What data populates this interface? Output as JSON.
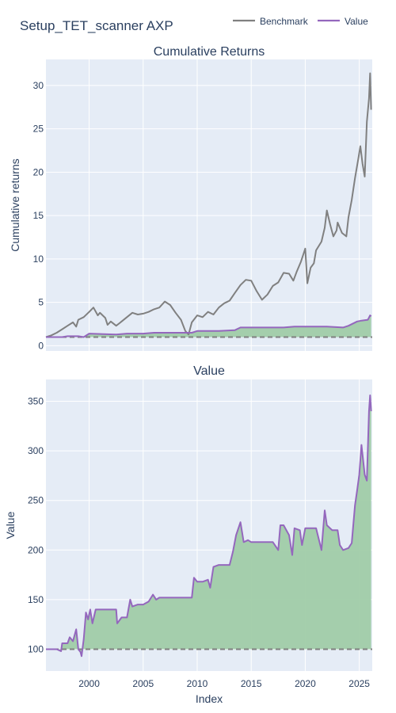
{
  "title": "Setup_TET_scanner AXP",
  "legend": {
    "position": "top-right",
    "items": [
      {
        "label": "Benchmark",
        "color": "#808080"
      },
      {
        "label": "Value",
        "color": "#9467bd"
      }
    ]
  },
  "chart_data": [
    {
      "type": "line",
      "title": "Cumulative Returns",
      "ylabel": "Cumulative returns",
      "xlabel": "",
      "xlim": [
        1996.0,
        2026.2
      ],
      "ylim": [
        -0.6,
        33.0
      ],
      "yticks": [
        0,
        5,
        10,
        15,
        20,
        25,
        30
      ],
      "grid": true,
      "baseline": 1,
      "fill_color": "#a0cca8",
      "series": [
        {
          "name": "Benchmark",
          "color": "#808080",
          "x": [
            1996.0,
            1996.5,
            1997.0,
            1997.5,
            1998.0,
            1998.5,
            1998.8,
            1999.0,
            1999.5,
            2000.0,
            2000.4,
            2000.8,
            2001.0,
            2001.5,
            2001.7,
            2002.0,
            2002.5,
            2002.8,
            2003.0,
            2003.5,
            2004.0,
            2004.5,
            2005.0,
            2005.5,
            2006.0,
            2006.5,
            2007.0,
            2007.5,
            2008.0,
            2008.5,
            2008.9,
            2009.2,
            2009.5,
            2010.0,
            2010.5,
            2011.0,
            2011.5,
            2012.0,
            2012.5,
            2013.0,
            2013.5,
            2014.0,
            2014.5,
            2015.0,
            2015.5,
            2016.0,
            2016.5,
            2017.0,
            2017.5,
            2018.0,
            2018.5,
            2018.9,
            2019.2,
            2019.6,
            2020.0,
            2020.2,
            2020.5,
            2020.8,
            2021.0,
            2021.5,
            2021.8,
            2022.0,
            2022.3,
            2022.6,
            2022.9,
            2023.0,
            2023.4,
            2023.8,
            2024.0,
            2024.3,
            2024.6,
            2024.9,
            2025.1,
            2025.3,
            2025.5,
            2025.7,
            2025.9,
            2026.0,
            2026.1
          ],
          "y": [
            1.0,
            1.2,
            1.5,
            1.9,
            2.3,
            2.7,
            2.2,
            3.0,
            3.3,
            3.9,
            4.4,
            3.5,
            3.8,
            3.2,
            2.4,
            2.8,
            2.3,
            2.6,
            2.8,
            3.3,
            3.8,
            3.6,
            3.7,
            3.9,
            4.2,
            4.4,
            5.1,
            4.7,
            3.8,
            3.0,
            1.7,
            1.3,
            2.7,
            3.5,
            3.3,
            3.9,
            3.6,
            4.4,
            4.9,
            5.2,
            6.1,
            7.0,
            7.6,
            7.5,
            6.3,
            5.3,
            5.9,
            6.9,
            7.3,
            8.4,
            8.3,
            7.5,
            8.5,
            9.7,
            11.2,
            7.2,
            9.0,
            9.5,
            11.0,
            12.0,
            13.6,
            15.6,
            14.0,
            12.6,
            13.3,
            14.2,
            13.0,
            12.6,
            14.8,
            16.8,
            19.3,
            21.5,
            23.0,
            21.0,
            19.5,
            25.8,
            28.5,
            31.4,
            27.2
          ]
        },
        {
          "name": "Value",
          "color": "#9467bd",
          "x": [
            1996.0,
            1997.5,
            1998.0,
            1999.0,
            1999.5,
            2000.0,
            2002.5,
            2003.5,
            2005.0,
            2006.0,
            2006.5,
            2009.5,
            2010.0,
            2012.0,
            2013.5,
            2014.0,
            2018.0,
            2019.0,
            2021.0,
            2022.0,
            2023.5,
            2024.0,
            2024.8,
            2025.2,
            2025.8,
            2026.0,
            2026.1
          ],
          "y": [
            1.0,
            1.0,
            1.1,
            1.1,
            1.0,
            1.4,
            1.3,
            1.4,
            1.4,
            1.5,
            1.5,
            1.5,
            1.7,
            1.7,
            1.8,
            2.1,
            2.1,
            2.2,
            2.2,
            2.2,
            2.1,
            2.3,
            2.8,
            2.9,
            3.0,
            3.5,
            3.4
          ]
        }
      ]
    },
    {
      "type": "area",
      "title": "Value",
      "ylabel": "Value",
      "xlabel": "Index",
      "xlim": [
        1996.0,
        2026.2
      ],
      "ylim": [
        78,
        372
      ],
      "yticks": [
        100,
        150,
        200,
        250,
        300,
        350
      ],
      "xticks": [
        2000,
        2005,
        2010,
        2015,
        2020,
        2025
      ],
      "grid": true,
      "baseline": 100,
      "fill_color": "#a0cca8",
      "series": [
        {
          "name": "Value",
          "color": "#9467bd",
          "x": [
            1996.0,
            1997.0,
            1997.4,
            1997.5,
            1998.0,
            1998.2,
            1998.5,
            1998.8,
            1999.0,
            1999.2,
            1999.3,
            1999.5,
            1999.7,
            1999.9,
            2000.1,
            2000.3,
            2000.6,
            2001.0,
            2002.5,
            2002.6,
            2003.0,
            2003.5,
            2003.8,
            2004.0,
            2004.5,
            2005.0,
            2005.5,
            2005.9,
            2006.2,
            2006.5,
            2007.0,
            2009.5,
            2009.7,
            2010.0,
            2010.5,
            2011.0,
            2011.2,
            2011.5,
            2012.0,
            2013.0,
            2013.3,
            2013.6,
            2014.0,
            2014.3,
            2014.7,
            2015.0,
            2017.0,
            2017.5,
            2017.7,
            2018.0,
            2018.5,
            2018.8,
            2019.0,
            2019.5,
            2019.7,
            2020.0,
            2021.0,
            2021.5,
            2021.8,
            2022.0,
            2022.5,
            2023.0,
            2023.2,
            2023.5,
            2024.0,
            2024.3,
            2024.6,
            2024.8,
            2025.0,
            2025.2,
            2025.5,
            2025.7,
            2025.9,
            2026.0,
            2026.1
          ],
          "y": [
            100,
            100,
            98,
            106,
            106,
            112,
            108,
            120,
            100,
            97,
            93,
            110,
            137,
            130,
            140,
            126,
            140,
            140,
            140,
            126,
            132,
            132,
            150,
            143,
            145,
            145,
            148,
            155,
            150,
            152,
            152,
            152,
            172,
            168,
            168,
            170,
            162,
            183,
            185,
            185,
            198,
            215,
            228,
            208,
            210,
            208,
            208,
            200,
            225,
            225,
            215,
            195,
            222,
            220,
            205,
            222,
            222,
            200,
            240,
            225,
            220,
            220,
            205,
            200,
            202,
            207,
            245,
            260,
            276,
            306,
            276,
            270,
            340,
            356,
            340
          ]
        },
        {
          "name": "Benchmark",
          "color": "#808080",
          "x": [
            1996.0,
            2026.1
          ],
          "y": [
            100,
            100
          ]
        }
      ]
    }
  ]
}
